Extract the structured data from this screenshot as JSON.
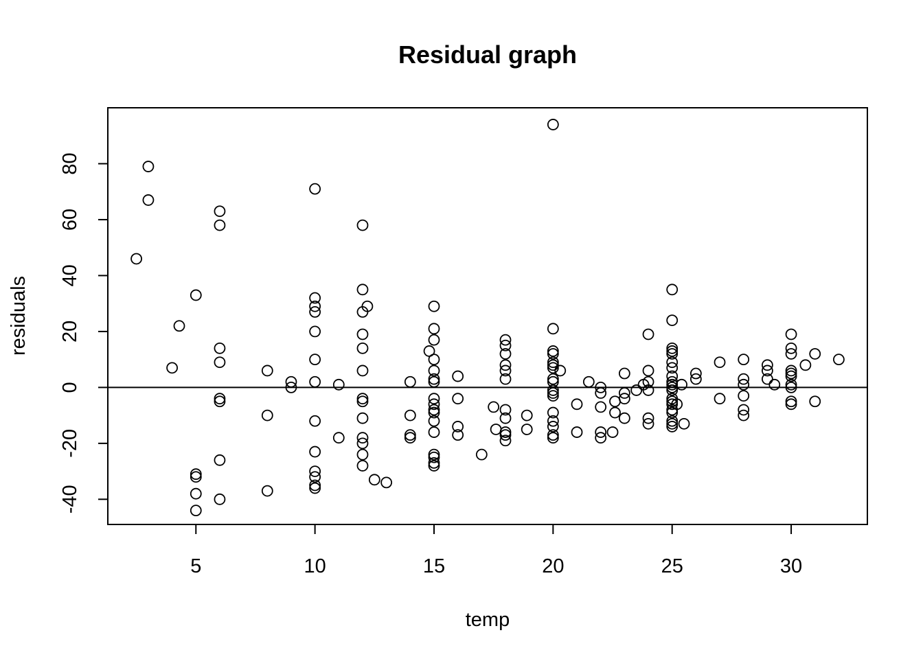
{
  "chart_data": {
    "type": "scatter",
    "title": "Residual graph",
    "xlabel": "temp",
    "ylabel": "residuals",
    "xlim": [
      1.3,
      33.2
    ],
    "ylim": [
      -49,
      100
    ],
    "x_ticks": [
      5,
      10,
      15,
      20,
      25,
      30
    ],
    "y_ticks": [
      -40,
      -20,
      0,
      20,
      40,
      60,
      80
    ],
    "x_tick_labels": [
      "5",
      "10",
      "15",
      "20",
      "25",
      "30"
    ],
    "y_tick_labels": [
      "-40",
      "-20",
      "0",
      "20",
      "40",
      "60",
      "80"
    ],
    "reference_line_y": 0,
    "grid": false,
    "points": [
      [
        2.5,
        46
      ],
      [
        3,
        79
      ],
      [
        3,
        67
      ],
      [
        4,
        7
      ],
      [
        4.3,
        22
      ],
      [
        5,
        33
      ],
      [
        5,
        -31
      ],
      [
        5,
        -32
      ],
      [
        5,
        -38
      ],
      [
        5,
        -44
      ],
      [
        6,
        63
      ],
      [
        6,
        58
      ],
      [
        6,
        14
      ],
      [
        6,
        9
      ],
      [
        6,
        -4
      ],
      [
        6,
        -5
      ],
      [
        6,
        -26
      ],
      [
        6,
        -40
      ],
      [
        8,
        6
      ],
      [
        8,
        -10
      ],
      [
        8,
        -37
      ],
      [
        9,
        2
      ],
      [
        9,
        0
      ],
      [
        10,
        71
      ],
      [
        10,
        32
      ],
      [
        10,
        29
      ],
      [
        10,
        27
      ],
      [
        10,
        20
      ],
      [
        10,
        10
      ],
      [
        10,
        2
      ],
      [
        10,
        -12
      ],
      [
        10,
        -23
      ],
      [
        10,
        -30
      ],
      [
        10,
        -32
      ],
      [
        10,
        -35
      ],
      [
        10,
        -36
      ],
      [
        11,
        1
      ],
      [
        11,
        -18
      ],
      [
        12,
        58
      ],
      [
        12,
        35
      ],
      [
        12,
        27
      ],
      [
        12,
        19
      ],
      [
        12,
        14
      ],
      [
        12,
        6
      ],
      [
        12,
        -4
      ],
      [
        12,
        -5
      ],
      [
        12,
        -11
      ],
      [
        12,
        -18
      ],
      [
        12,
        -20
      ],
      [
        12,
        -24
      ],
      [
        12,
        -28
      ],
      [
        12.2,
        29
      ],
      [
        12.5,
        -33
      ],
      [
        13,
        -34
      ],
      [
        14,
        2
      ],
      [
        14,
        -10
      ],
      [
        14,
        -17
      ],
      [
        14,
        -18
      ],
      [
        14.8,
        13
      ],
      [
        15,
        29
      ],
      [
        15,
        21
      ],
      [
        15,
        17
      ],
      [
        15,
        10
      ],
      [
        15,
        6
      ],
      [
        15,
        3
      ],
      [
        15,
        2
      ],
      [
        15,
        -4
      ],
      [
        15,
        -6
      ],
      [
        15,
        -8
      ],
      [
        15,
        -9
      ],
      [
        15,
        -12
      ],
      [
        15,
        -16
      ],
      [
        15,
        -24
      ],
      [
        15,
        -25
      ],
      [
        15,
        -27
      ],
      [
        15,
        -28
      ],
      [
        16,
        4
      ],
      [
        16,
        -4
      ],
      [
        16,
        -14
      ],
      [
        16,
        -17
      ],
      [
        17,
        -24
      ],
      [
        17.5,
        -7
      ],
      [
        17.6,
        -15
      ],
      [
        18,
        17
      ],
      [
        18,
        15
      ],
      [
        18,
        12
      ],
      [
        18,
        8
      ],
      [
        18,
        6
      ],
      [
        18,
        3
      ],
      [
        18,
        -8
      ],
      [
        18,
        -11
      ],
      [
        18,
        -16
      ],
      [
        18,
        -17
      ],
      [
        18,
        -19
      ],
      [
        18.9,
        -10
      ],
      [
        18.9,
        -15
      ],
      [
        20,
        94
      ],
      [
        20,
        21
      ],
      [
        20,
        13
      ],
      [
        20,
        12
      ],
      [
        20,
        9
      ],
      [
        20,
        8
      ],
      [
        20,
        7
      ],
      [
        20,
        3
      ],
      [
        20,
        2
      ],
      [
        20,
        -1
      ],
      [
        20,
        -2
      ],
      [
        20,
        -3
      ],
      [
        20,
        -9
      ],
      [
        20,
        -12
      ],
      [
        20,
        -14
      ],
      [
        20,
        -17
      ],
      [
        20,
        -18
      ],
      [
        20.3,
        6
      ],
      [
        21,
        -6
      ],
      [
        21,
        -16
      ],
      [
        21.5,
        2
      ],
      [
        22,
        0
      ],
      [
        22,
        -2
      ],
      [
        22,
        -7
      ],
      [
        22,
        -16
      ],
      [
        22,
        -18
      ],
      [
        22.5,
        -16
      ],
      [
        22.6,
        -5
      ],
      [
        22.6,
        -9
      ],
      [
        23,
        5
      ],
      [
        23,
        -2
      ],
      [
        23,
        -4
      ],
      [
        23,
        -11
      ],
      [
        23.5,
        -1
      ],
      [
        23.8,
        1
      ],
      [
        24,
        19
      ],
      [
        24,
        6
      ],
      [
        24,
        2
      ],
      [
        24,
        -1
      ],
      [
        24,
        -11
      ],
      [
        24,
        -13
      ],
      [
        25,
        35
      ],
      [
        25,
        24
      ],
      [
        25,
        14
      ],
      [
        25,
        13
      ],
      [
        25,
        12
      ],
      [
        25,
        9
      ],
      [
        25,
        7
      ],
      [
        25,
        4
      ],
      [
        25,
        2
      ],
      [
        25,
        1
      ],
      [
        25,
        0
      ],
      [
        25,
        -1
      ],
      [
        25,
        -4
      ],
      [
        25,
        -5
      ],
      [
        25,
        -6
      ],
      [
        25,
        -8
      ],
      [
        25,
        -9
      ],
      [
        25,
        -12
      ],
      [
        25,
        -13
      ],
      [
        25,
        -14
      ],
      [
        25.2,
        -6
      ],
      [
        25.4,
        1
      ],
      [
        25.5,
        -13
      ],
      [
        26,
        5
      ],
      [
        26,
        3
      ],
      [
        27,
        9
      ],
      [
        27,
        -4
      ],
      [
        28,
        10
      ],
      [
        28,
        3
      ],
      [
        28,
        1
      ],
      [
        28,
        -3
      ],
      [
        28,
        -8
      ],
      [
        28,
        -10
      ],
      [
        29,
        8
      ],
      [
        29,
        6
      ],
      [
        29,
        3
      ],
      [
        29.3,
        1
      ],
      [
        30,
        19
      ],
      [
        30,
        14
      ],
      [
        30,
        12
      ],
      [
        30,
        6
      ],
      [
        30,
        5
      ],
      [
        30,
        4
      ],
      [
        30,
        1
      ],
      [
        30,
        0
      ],
      [
        30,
        -5
      ],
      [
        30,
        -6
      ],
      [
        30.6,
        8
      ],
      [
        31,
        12
      ],
      [
        31,
        -5
      ],
      [
        32,
        10
      ]
    ]
  }
}
